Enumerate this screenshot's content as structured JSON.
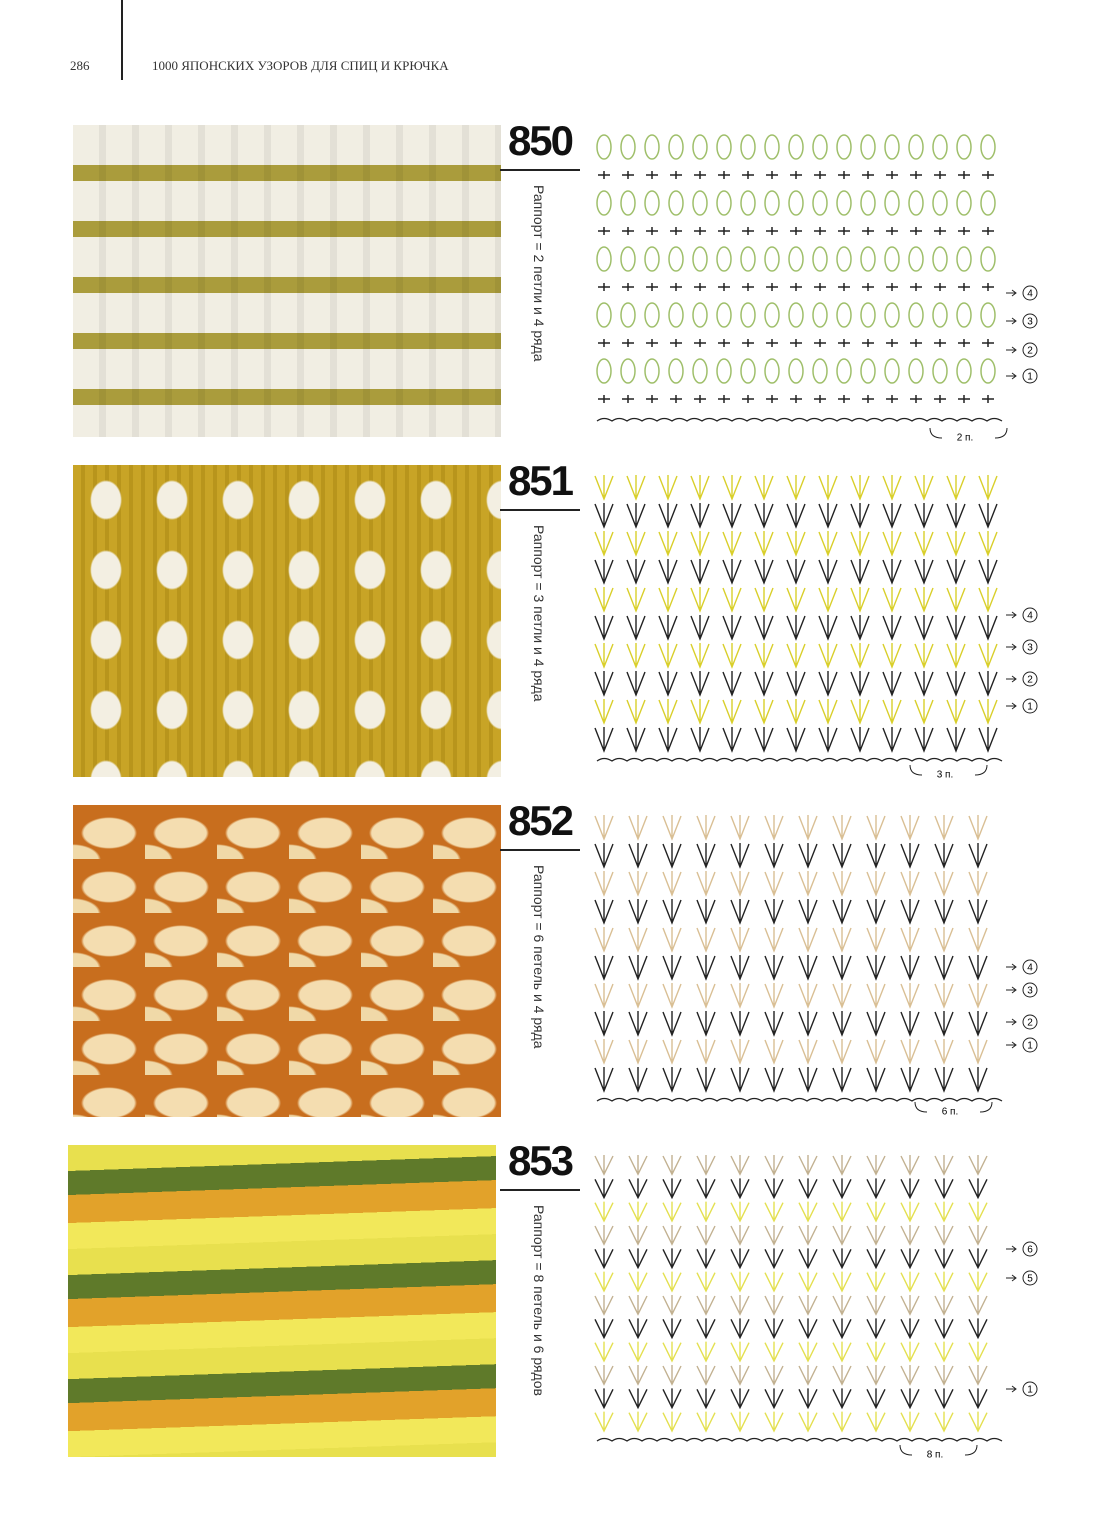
{
  "header": {
    "page": "286",
    "title": "1000 ЯПОНСКИХ УЗОРОВ ДЛЯ СПИЦ И КРЮЧКА"
  },
  "patterns": [
    {
      "number": "850",
      "repeat": "Раппорт = 2 петли и 4 ряда",
      "repeat_label": "2 п.",
      "rows": [
        "4",
        "3",
        "2",
        "1"
      ]
    },
    {
      "number": "851",
      "repeat": "Раппорт = 3 петли и 4 ряда",
      "repeat_label": "3 п.",
      "rows": [
        "4",
        "3",
        "2",
        "1"
      ]
    },
    {
      "number": "852",
      "repeat": "Раппорт = 6 петель и 4 ряда",
      "repeat_label": "6 п.",
      "rows": [
        "4",
        "3",
        "2",
        "1"
      ]
    },
    {
      "number": "853",
      "repeat": "Раппорт = 8 петель и 6 рядов",
      "repeat_label": "8 п.",
      "rows": [
        "6",
        "5",
        "1"
      ]
    }
  ]
}
